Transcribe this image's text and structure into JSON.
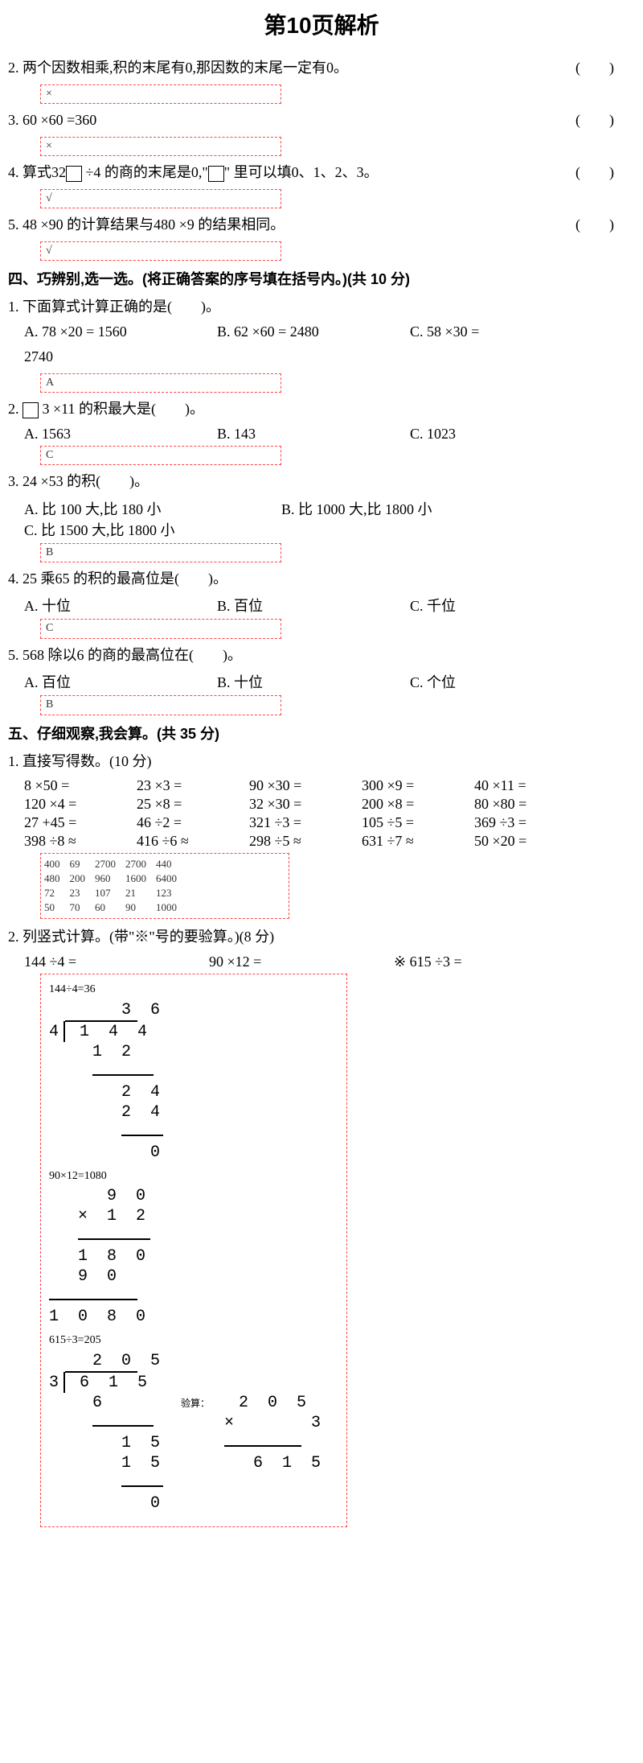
{
  "page_title": "第10页解析",
  "red_border_color": "#ff4444",
  "tf": {
    "q2": {
      "num": "2.",
      "text": "两个因数相乘,积的末尾有0,那因数的末尾一定有0。",
      "paren": "(　　)",
      "ans": "×"
    },
    "q3": {
      "num": "3.",
      "text": "60 ×60 =360",
      "paren": "(　　)",
      "ans": "×"
    },
    "q4": {
      "num": "4.",
      "text_a": "算式32",
      "text_b": " ÷4 的商的末尾是0,\"",
      "text_c": "\" 里可以填0、1、2、3。",
      "paren": "(　　)",
      "ans": "√"
    },
    "q5": {
      "num": "5.",
      "text": "48 ×90 的计算结果与480 ×9 的结果相同。",
      "paren": "(　　)",
      "ans": "√"
    }
  },
  "sec4": {
    "head": "四、巧辨别,选一选。(将正确答案的序号填在括号内。)(共 10 分)",
    "q1": {
      "num": "1.",
      "stem": "下面算式计算正确的是(　　)。",
      "A": "A. 78 ×20 = 1560",
      "B": "B. 62 ×60 = 2480",
      "C": "C. 58 ×30 =",
      "extra": "2740",
      "ans": "A"
    },
    "q2": {
      "num": "2.",
      "stem_a": "",
      "stem_b": "3 ×11 的积最大是(　　)。",
      "A": "A. 1563",
      "B": "B. 143",
      "C": "C. 1023",
      "ans": "C"
    },
    "q3": {
      "num": "3.",
      "stem": "24 ×53 的积(　　)。",
      "A": "A. 比 100 大,比 180 小",
      "B": "B. 比 1000 大,比 1800 小",
      "C": "C. 比 1500 大,比 1800 小",
      "ans": "B"
    },
    "q4": {
      "num": "4.",
      "stem": "25 乘65 的积的最高位是(　　)。",
      "A": "A. 十位",
      "B": "B. 百位",
      "C": "C. 千位",
      "ans": "C"
    },
    "q5": {
      "num": "5.",
      "stem": "568 除以6 的商的最高位在(　　)。",
      "A": "A. 百位",
      "B": "B. 十位",
      "C": "C. 个位",
      "ans": "B"
    }
  },
  "sec5": {
    "head": "五、仔细观察,我会算。(共 35 分)",
    "p1": {
      "title": "1. 直接写得数。(10 分)",
      "rows": [
        [
          "8 ×50 =",
          "23 ×3 =",
          "90 ×30 =",
          "300 ×9 =",
          "40 ×11 ="
        ],
        [
          "120 ×4 =",
          "25 ×8 =",
          "32 ×30 =",
          "200 ×8 =",
          "80 ×80 ="
        ],
        [
          "27 +45 =",
          "46 ÷2 =",
          "321 ÷3 =",
          "105 ÷5 =",
          "369 ÷3 ="
        ],
        [
          "398 ÷8 ≈",
          "416 ÷6 ≈",
          "298 ÷5 ≈",
          "631 ÷7 ≈",
          "50 ×20 ="
        ]
      ],
      "ans": [
        [
          "400",
          "69",
          "2700",
          "2700",
          "440"
        ],
        [
          "480",
          "200",
          "960",
          "1600",
          "6400"
        ],
        [
          "72",
          "23",
          "107",
          "21",
          "123"
        ],
        [
          "50",
          "70",
          "60",
          "90",
          "1000"
        ]
      ]
    },
    "p2": {
      "title": "2. 列竖式计算。(带\"※\"号的要验算。)(8 分)",
      "probs": [
        "144 ÷4 =",
        "90 ×12 =",
        "※ 615 ÷3 ="
      ],
      "t1": "144÷4=36",
      "t2": "90×12=1080",
      "t3": "615÷3=205",
      "check_label": "验算："
    }
  }
}
